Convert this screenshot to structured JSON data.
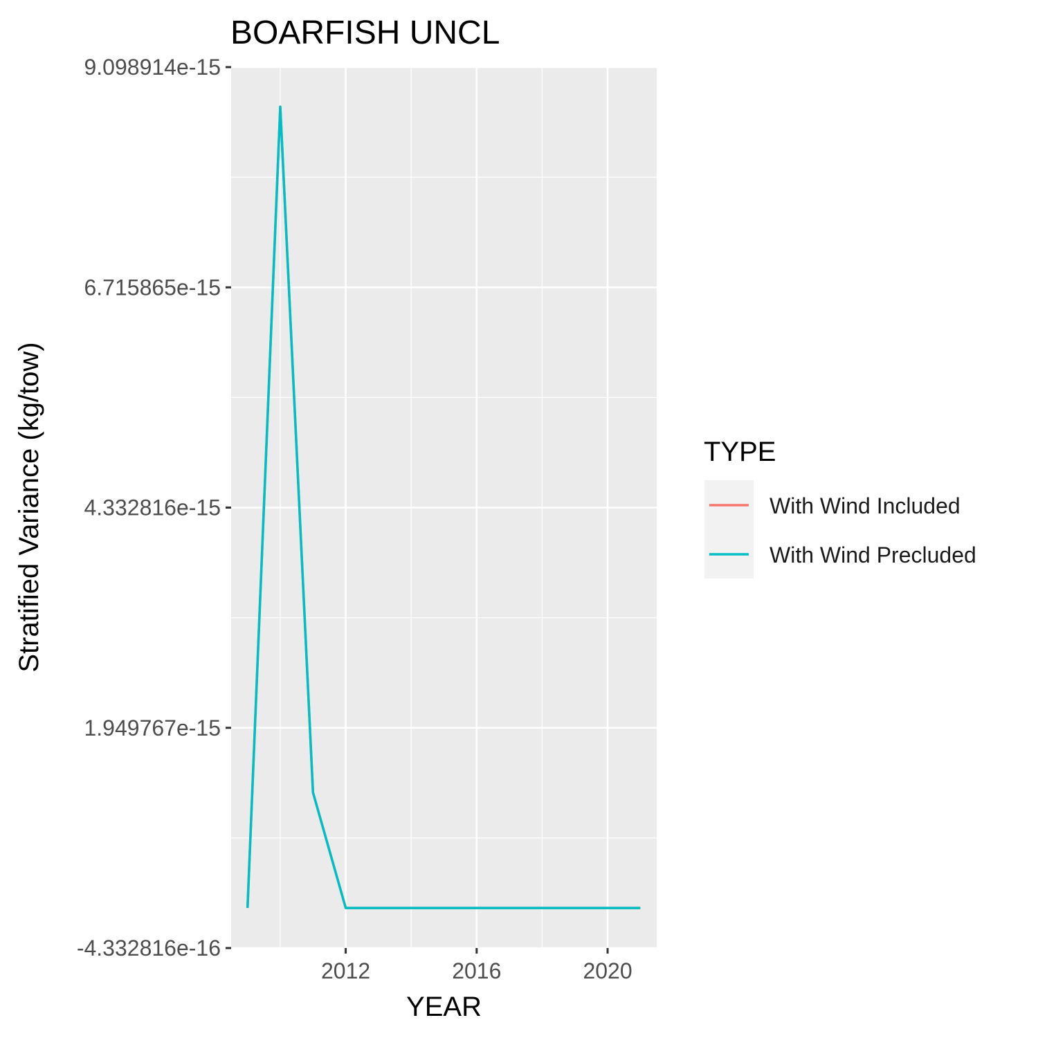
{
  "chart_data": {
    "type": "line",
    "title": "BOARFISH UNCL",
    "xlabel": "YEAR",
    "ylabel": "Stratified Variance (kg/tow)",
    "xlim": [
      2008.5,
      2021.5
    ],
    "ylim": [
      -4.332816e-16,
      9.098914e-15
    ],
    "x_ticks": [
      2012,
      2016,
      2020
    ],
    "x_tick_labels": [
      "2012",
      "2016",
      "2020"
    ],
    "y_ticks": [
      -4.332816e-16,
      1.949767e-15,
      4.332816e-15,
      6.715865e-15,
      9.098914e-15
    ],
    "y_tick_labels": [
      "-4.332816e-16",
      "1.949767e-15",
      "4.332816e-15",
      "6.715865e-15",
      "9.098914e-15"
    ],
    "grid": true,
    "legend": {
      "title": "TYPE",
      "position": "right",
      "entries": [
        "With Wind Included",
        "With Wind Precluded"
      ]
    },
    "series": [
      {
        "name": "With Wind Included",
        "color": "#F8766D",
        "x": [
          2009,
          2010,
          2011,
          2012,
          2013,
          2014,
          2015,
          2016,
          2017,
          2018,
          2019,
          2020,
          2021
        ],
        "values": [
          0,
          8.67e-15,
          1.25e-15,
          0,
          0,
          0,
          0,
          0,
          0,
          0,
          0,
          0,
          0
        ]
      },
      {
        "name": "With Wind Precluded",
        "color": "#00BFC4",
        "x": [
          2009,
          2010,
          2011,
          2012,
          2013,
          2014,
          2015,
          2016,
          2017,
          2018,
          2019,
          2020,
          2021
        ],
        "values": [
          0,
          8.67e-15,
          1.25e-15,
          0,
          0,
          0,
          0,
          0,
          0,
          0,
          0,
          0,
          0
        ]
      }
    ]
  },
  "colors": {
    "panel_background": "#EBEBEB",
    "grid_line": "#FFFFFF",
    "legend_key_background": "#F2F2F2"
  }
}
